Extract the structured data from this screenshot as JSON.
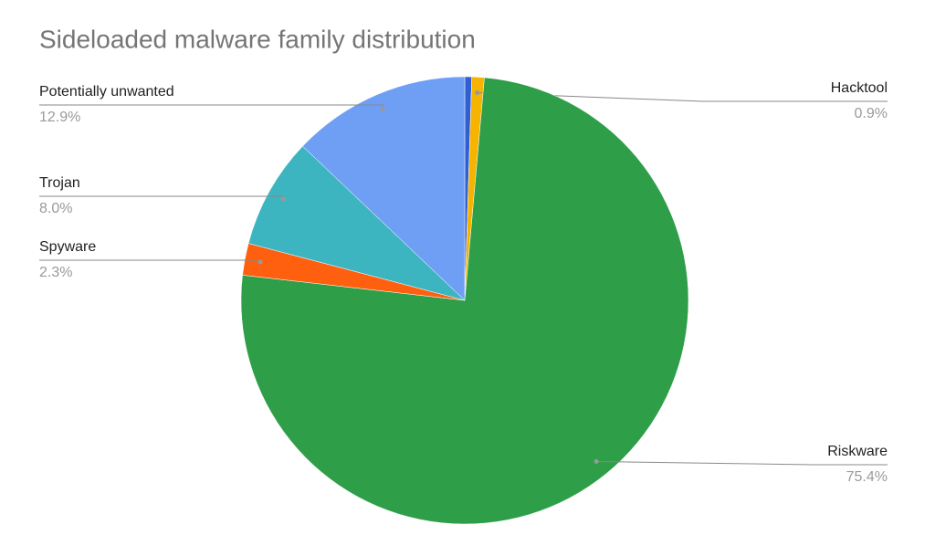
{
  "chart_data": {
    "type": "pie",
    "title": "Sideloaded malware family distribution",
    "categories": [
      null,
      "Hacktool",
      "Riskware",
      "Spyware",
      "Trojan",
      "Potentially unwanted"
    ],
    "values": [
      0.5,
      0.9,
      75.4,
      2.3,
      8.0,
      12.9
    ],
    "value_labels": [
      null,
      "0.9%",
      "75.4%",
      "2.3%",
      "8.0%",
      "12.9%"
    ],
    "colors": [
      "#2f5fd0",
      "#f6b400",
      "#2f9e48",
      "#ff6010",
      "#3db5c0",
      "#6f9ff5"
    ]
  }
}
